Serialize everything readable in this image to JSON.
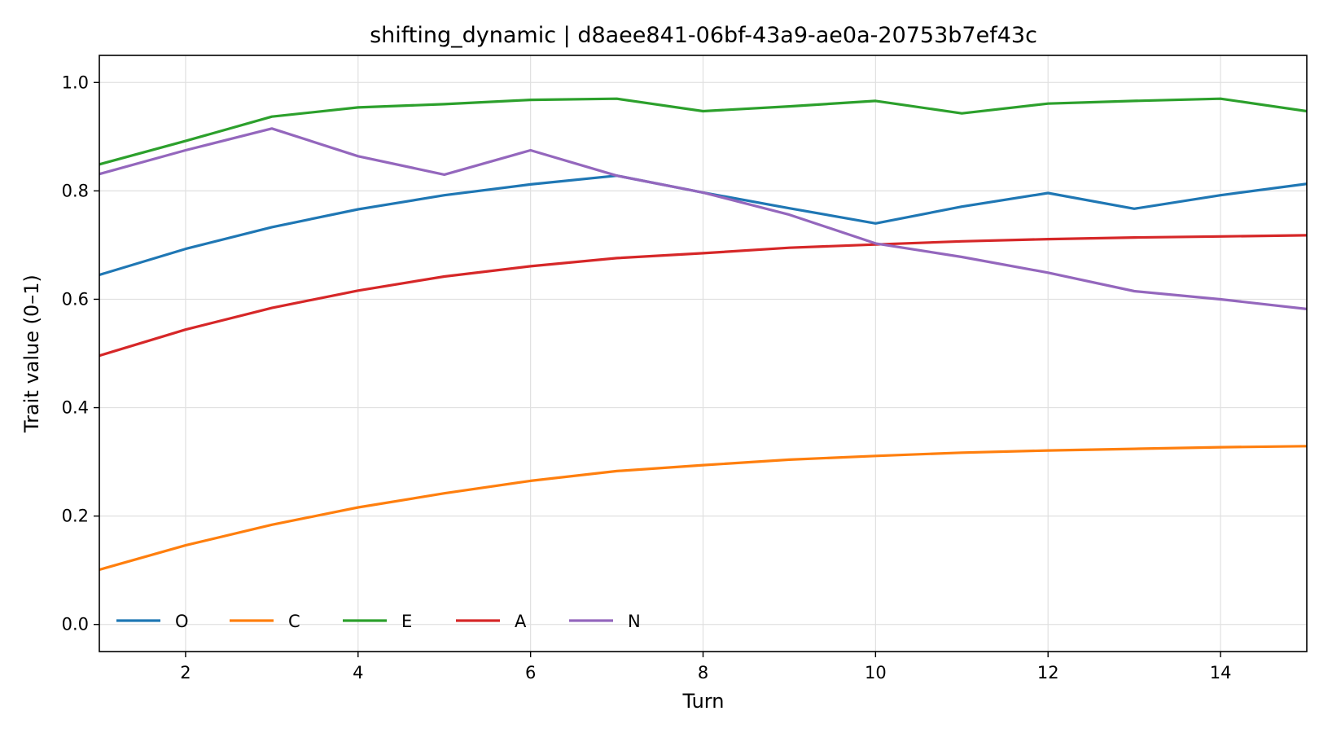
{
  "chart_data": {
    "type": "line",
    "title": "shifting_dynamic | d8aee841-06bf-43a9-ae0a-20753b7ef43c",
    "xlabel": "Turn",
    "ylabel": "Trait value (0–1)",
    "xlim": [
      1,
      15
    ],
    "ylim": [
      -0.05,
      1.05
    ],
    "x": [
      1,
      2,
      3,
      4,
      5,
      6,
      7,
      8,
      9,
      10,
      11,
      12,
      13,
      14,
      15
    ],
    "xticks": [
      2,
      4,
      6,
      8,
      10,
      12,
      14
    ],
    "xtick_labels": [
      "2",
      "4",
      "6",
      "8",
      "10",
      "12",
      "14"
    ],
    "yticks": [
      0.0,
      0.2,
      0.4,
      0.6,
      0.8,
      1.0
    ],
    "ytick_labels": [
      "0.0",
      "0.2",
      "0.4",
      "0.6",
      "0.8",
      "1.0"
    ],
    "grid": true,
    "legend_position": "lower-left",
    "legend_columns": 5,
    "series": [
      {
        "name": "O",
        "color": "#1f77b4",
        "values": [
          0.645,
          0.693,
          0.733,
          0.766,
          0.792,
          0.812,
          0.828,
          0.797,
          0.768,
          0.74,
          0.771,
          0.796,
          0.767,
          0.792,
          0.813
        ]
      },
      {
        "name": "C",
        "color": "#ff7f0e",
        "values": [
          0.101,
          0.146,
          0.184,
          0.216,
          0.242,
          0.265,
          0.283,
          0.294,
          0.304,
          0.311,
          0.317,
          0.321,
          0.324,
          0.327,
          0.329
        ]
      },
      {
        "name": "E",
        "color": "#2ca02c",
        "values": [
          0.849,
          0.892,
          0.937,
          0.954,
          0.96,
          0.968,
          0.97,
          0.947,
          0.956,
          0.966,
          0.943,
          0.961,
          0.966,
          0.97,
          0.947
        ]
      },
      {
        "name": "A",
        "color": "#d62728",
        "values": [
          0.496,
          0.544,
          0.584,
          0.616,
          0.642,
          0.661,
          0.676,
          0.685,
          0.695,
          0.701,
          0.707,
          0.711,
          0.714,
          0.716,
          0.718
        ]
      },
      {
        "name": "N",
        "color": "#9467bd",
        "values": [
          0.831,
          0.875,
          0.915,
          0.864,
          0.83,
          0.875,
          0.828,
          0.797,
          0.756,
          0.703,
          0.678,
          0.649,
          0.615,
          0.6,
          0.582
        ]
      }
    ]
  }
}
